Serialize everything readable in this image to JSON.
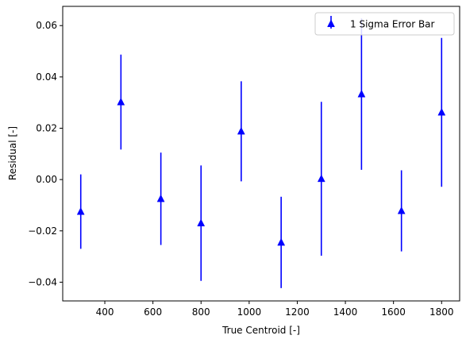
{
  "chart_data": {
    "type": "scatter",
    "title": "",
    "xlabel": "True Centroid [-]",
    "ylabel": "Residual [-]",
    "xlim": [
      225,
      1875
    ],
    "ylim": [
      -0.0473,
      0.0675
    ],
    "grid": false,
    "legend_position": "top-right",
    "x_ticks": [
      {
        "value": 400,
        "label": "400"
      },
      {
        "value": 600,
        "label": "600"
      },
      {
        "value": 800,
        "label": "800"
      },
      {
        "value": 1000,
        "label": "1000"
      },
      {
        "value": 1200,
        "label": "1200"
      },
      {
        "value": 1400,
        "label": "1400"
      },
      {
        "value": 1600,
        "label": "1600"
      },
      {
        "value": 1800,
        "label": "1800"
      }
    ],
    "y_ticks": [
      {
        "value": -0.04,
        "label": "−0.04"
      },
      {
        "value": -0.02,
        "label": "−0.02"
      },
      {
        "value": 0.0,
        "label": "0.00"
      },
      {
        "value": 0.02,
        "label": "0.02"
      },
      {
        "value": 0.04,
        "label": "0.04"
      },
      {
        "value": 0.06,
        "label": "0.06"
      }
    ],
    "series": [
      {
        "name": "1 Sigma Error Bar",
        "color": "#0000ff",
        "marker": "triangle-up",
        "points": [
          {
            "x": 300,
            "y": -0.0125,
            "err": 0.0145
          },
          {
            "x": 467,
            "y": 0.0302,
            "err": 0.0185
          },
          {
            "x": 633,
            "y": -0.0075,
            "err": 0.018
          },
          {
            "x": 800,
            "y": -0.017,
            "err": 0.0225
          },
          {
            "x": 967,
            "y": 0.0188,
            "err": 0.0195
          },
          {
            "x": 1133,
            "y": -0.0245,
            "err": 0.0178
          },
          {
            "x": 1300,
            "y": 0.0003,
            "err": 0.03
          },
          {
            "x": 1467,
            "y": 0.0333,
            "err": 0.0295
          },
          {
            "x": 1633,
            "y": -0.0122,
            "err": 0.0158
          },
          {
            "x": 1800,
            "y": 0.0262,
            "err": 0.029
          }
        ]
      }
    ]
  }
}
